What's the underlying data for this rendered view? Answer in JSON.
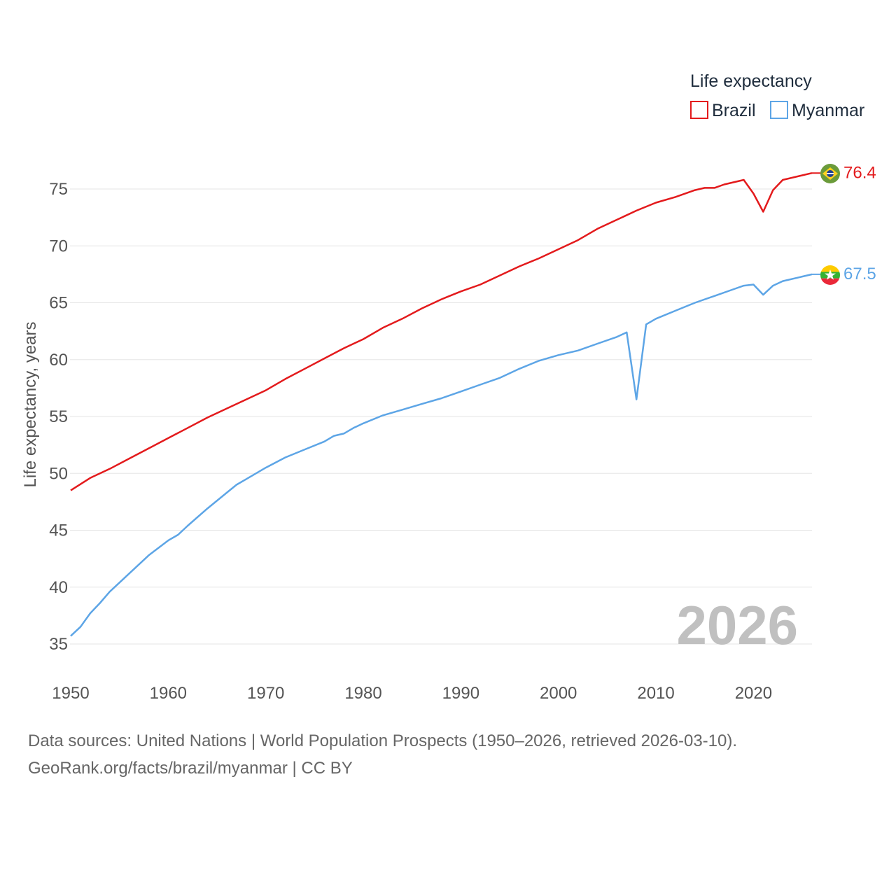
{
  "legend": {
    "title": "Life expectancy"
  },
  "watermark_year": "2026",
  "footer": {
    "line1": "Data sources: United Nations | World Population Prospects (1950–2026, retrieved 2026-03-10).",
    "line2": "GeoRank.org/facts/brazil/myanmar | CC BY"
  },
  "chart_data": {
    "type": "line",
    "title": "Life expectancy",
    "xlabel": "",
    "ylabel": "Life expectancy, years",
    "xlim": [
      1950,
      2026
    ],
    "ylim": [
      33,
      78
    ],
    "x_ticks": [
      1950,
      1960,
      1970,
      1980,
      1990,
      2000,
      2010,
      2020
    ],
    "y_ticks": [
      35,
      40,
      45,
      50,
      55,
      60,
      65,
      70,
      75
    ],
    "grid": "horizontal",
    "legend_position": "top-right",
    "series": [
      {
        "name": "Brazil",
        "color": "#e31a1c",
        "end_label": "76.4",
        "flag": "brazil-flag",
        "points": [
          [
            1950,
            48.5
          ],
          [
            1952,
            49.6
          ],
          [
            1954,
            50.4
          ],
          [
            1956,
            51.3
          ],
          [
            1958,
            52.2
          ],
          [
            1960,
            53.1
          ],
          [
            1962,
            54.0
          ],
          [
            1964,
            54.9
          ],
          [
            1966,
            55.7
          ],
          [
            1968,
            56.5
          ],
          [
            1970,
            57.3
          ],
          [
            1972,
            58.3
          ],
          [
            1974,
            59.2
          ],
          [
            1976,
            60.1
          ],
          [
            1978,
            61.0
          ],
          [
            1980,
            61.8
          ],
          [
            1982,
            62.8
          ],
          [
            1984,
            63.6
          ],
          [
            1986,
            64.5
          ],
          [
            1988,
            65.3
          ],
          [
            1990,
            66.0
          ],
          [
            1992,
            66.6
          ],
          [
            1994,
            67.4
          ],
          [
            1996,
            68.2
          ],
          [
            1998,
            68.9
          ],
          [
            2000,
            69.7
          ],
          [
            2002,
            70.5
          ],
          [
            2004,
            71.5
          ],
          [
            2006,
            72.3
          ],
          [
            2008,
            73.1
          ],
          [
            2010,
            73.8
          ],
          [
            2012,
            74.3
          ],
          [
            2014,
            74.9
          ],
          [
            2015,
            75.1
          ],
          [
            2016,
            75.1
          ],
          [
            2017,
            75.4
          ],
          [
            2019,
            75.8
          ],
          [
            2020,
            74.6
          ],
          [
            2021,
            73.0
          ],
          [
            2022,
            74.9
          ],
          [
            2023,
            75.8
          ],
          [
            2026,
            76.4
          ]
        ]
      },
      {
        "name": "Myanmar",
        "color": "#5da5e6",
        "end_label": "67.5",
        "flag": "myanmar-flag",
        "points": [
          [
            1950,
            35.7
          ],
          [
            1951,
            36.5
          ],
          [
            1952,
            37.7
          ],
          [
            1953,
            38.6
          ],
          [
            1954,
            39.6
          ],
          [
            1956,
            41.2
          ],
          [
            1958,
            42.8
          ],
          [
            1960,
            44.1
          ],
          [
            1961,
            44.6
          ],
          [
            1962,
            45.4
          ],
          [
            1964,
            46.9
          ],
          [
            1966,
            48.3
          ],
          [
            1967,
            49.0
          ],
          [
            1968,
            49.5
          ],
          [
            1970,
            50.5
          ],
          [
            1972,
            51.4
          ],
          [
            1974,
            52.1
          ],
          [
            1976,
            52.8
          ],
          [
            1977,
            53.3
          ],
          [
            1978,
            53.5
          ],
          [
            1979,
            54.0
          ],
          [
            1980,
            54.4
          ],
          [
            1982,
            55.1
          ],
          [
            1984,
            55.6
          ],
          [
            1986,
            56.1
          ],
          [
            1988,
            56.6
          ],
          [
            1990,
            57.2
          ],
          [
            1992,
            57.8
          ],
          [
            1994,
            58.4
          ],
          [
            1996,
            59.2
          ],
          [
            1998,
            59.9
          ],
          [
            2000,
            60.4
          ],
          [
            2002,
            60.8
          ],
          [
            2004,
            61.4
          ],
          [
            2006,
            62.0
          ],
          [
            2007,
            62.4
          ],
          [
            2008,
            56.5
          ],
          [
            2009,
            63.1
          ],
          [
            2010,
            63.6
          ],
          [
            2012,
            64.3
          ],
          [
            2014,
            65.0
          ],
          [
            2016,
            65.6
          ],
          [
            2018,
            66.2
          ],
          [
            2019,
            66.5
          ],
          [
            2020,
            66.6
          ],
          [
            2021,
            65.7
          ],
          [
            2022,
            66.5
          ],
          [
            2023,
            66.9
          ],
          [
            2026,
            67.5
          ]
        ]
      }
    ]
  }
}
